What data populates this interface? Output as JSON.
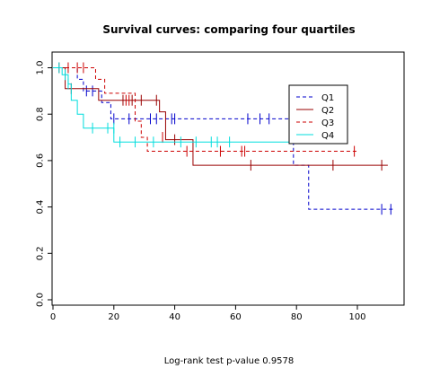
{
  "chart_data": {
    "type": "line",
    "subtype": "kaplan-meier step",
    "title": "Survival curves: comparing four quartiles",
    "xlabel": "",
    "ylabel": "",
    "xlim": [
      0,
      115
    ],
    "ylim": [
      -0.05,
      1.05
    ],
    "xticks": [
      0,
      20,
      40,
      60,
      80,
      100
    ],
    "yticks": [
      0.0,
      0.2,
      0.4,
      0.6,
      0.8,
      1.0
    ],
    "xtick_labels": [
      "0",
      "20",
      "40",
      "60",
      "80",
      "100"
    ],
    "ytick_labels": [
      "0.0",
      "0.2",
      "0.4",
      "0.6",
      "0.8",
      "1.0"
    ],
    "grid": false,
    "legend_position": "upper-right inside",
    "footnote": "Log-rank test p-value   0.9578",
    "series": [
      {
        "name": "Q1",
        "color": "#0000cc",
        "linestyle": "dashed",
        "steps": [
          [
            0,
            1.0
          ],
          [
            8,
            0.95
          ],
          [
            10,
            0.9
          ],
          [
            16,
            0.85
          ],
          [
            19,
            0.78
          ],
          [
            79,
            0.58
          ],
          [
            84,
            0.39
          ],
          [
            112,
            0.39
          ]
        ],
        "censored": [
          [
            11,
            0.9
          ],
          [
            13,
            0.9
          ],
          [
            20,
            0.78
          ],
          [
            25,
            0.78
          ],
          [
            32,
            0.78
          ],
          [
            34,
            0.78
          ],
          [
            39,
            0.78
          ],
          [
            40,
            0.78
          ],
          [
            64,
            0.78
          ],
          [
            68,
            0.78
          ],
          [
            71,
            0.78
          ],
          [
            108,
            0.39
          ],
          [
            111,
            0.39
          ]
        ]
      },
      {
        "name": "Q2",
        "color": "#990000",
        "linestyle": "solid",
        "steps": [
          [
            0,
            1.0
          ],
          [
            4,
            0.91
          ],
          [
            15,
            0.86
          ],
          [
            35,
            0.81
          ],
          [
            37,
            0.69
          ],
          [
            46,
            0.58
          ],
          [
            110,
            0.58
          ]
        ],
        "censored": [
          [
            6,
            0.91
          ],
          [
            23,
            0.86
          ],
          [
            26,
            0.86
          ],
          [
            29,
            0.86
          ],
          [
            34,
            0.86
          ],
          [
            40,
            0.69
          ],
          [
            65,
            0.58
          ],
          [
            92,
            0.58
          ],
          [
            108,
            0.58
          ]
        ]
      },
      {
        "name": "Q3",
        "color": "#cc0000",
        "linestyle": "dashed",
        "steps": [
          [
            0,
            1.0
          ],
          [
            14,
            0.95
          ],
          [
            17,
            0.89
          ],
          [
            27,
            0.77
          ],
          [
            29,
            0.7
          ],
          [
            31,
            0.64
          ],
          [
            100,
            0.64
          ]
        ],
        "censored": [
          [
            2,
            1.0
          ],
          [
            5,
            1.0
          ],
          [
            8,
            1.0
          ],
          [
            10,
            1.0
          ],
          [
            24,
            0.86
          ],
          [
            25,
            0.86
          ],
          [
            36,
            0.7
          ],
          [
            44,
            0.64
          ],
          [
            55,
            0.64
          ],
          [
            62,
            0.64
          ],
          [
            63,
            0.64
          ],
          [
            99,
            0.64
          ]
        ]
      },
      {
        "name": "Q4",
        "color": "#00dddd",
        "linestyle": "solid",
        "steps": [
          [
            0,
            1.0
          ],
          [
            3,
            0.97
          ],
          [
            5,
            0.93
          ],
          [
            6,
            0.86
          ],
          [
            8,
            0.8
          ],
          [
            10,
            0.74
          ],
          [
            20,
            0.68
          ],
          [
            84,
            0.68
          ]
        ],
        "censored": [
          [
            2,
            1.0
          ],
          [
            4,
            0.97
          ],
          [
            5,
            0.93
          ],
          [
            13,
            0.74
          ],
          [
            18,
            0.74
          ],
          [
            20,
            0.74
          ],
          [
            22,
            0.68
          ],
          [
            27,
            0.68
          ],
          [
            33,
            0.68
          ],
          [
            42,
            0.68
          ],
          [
            47,
            0.68
          ],
          [
            52,
            0.68
          ],
          [
            54,
            0.68
          ],
          [
            58,
            0.68
          ]
        ]
      }
    ]
  }
}
